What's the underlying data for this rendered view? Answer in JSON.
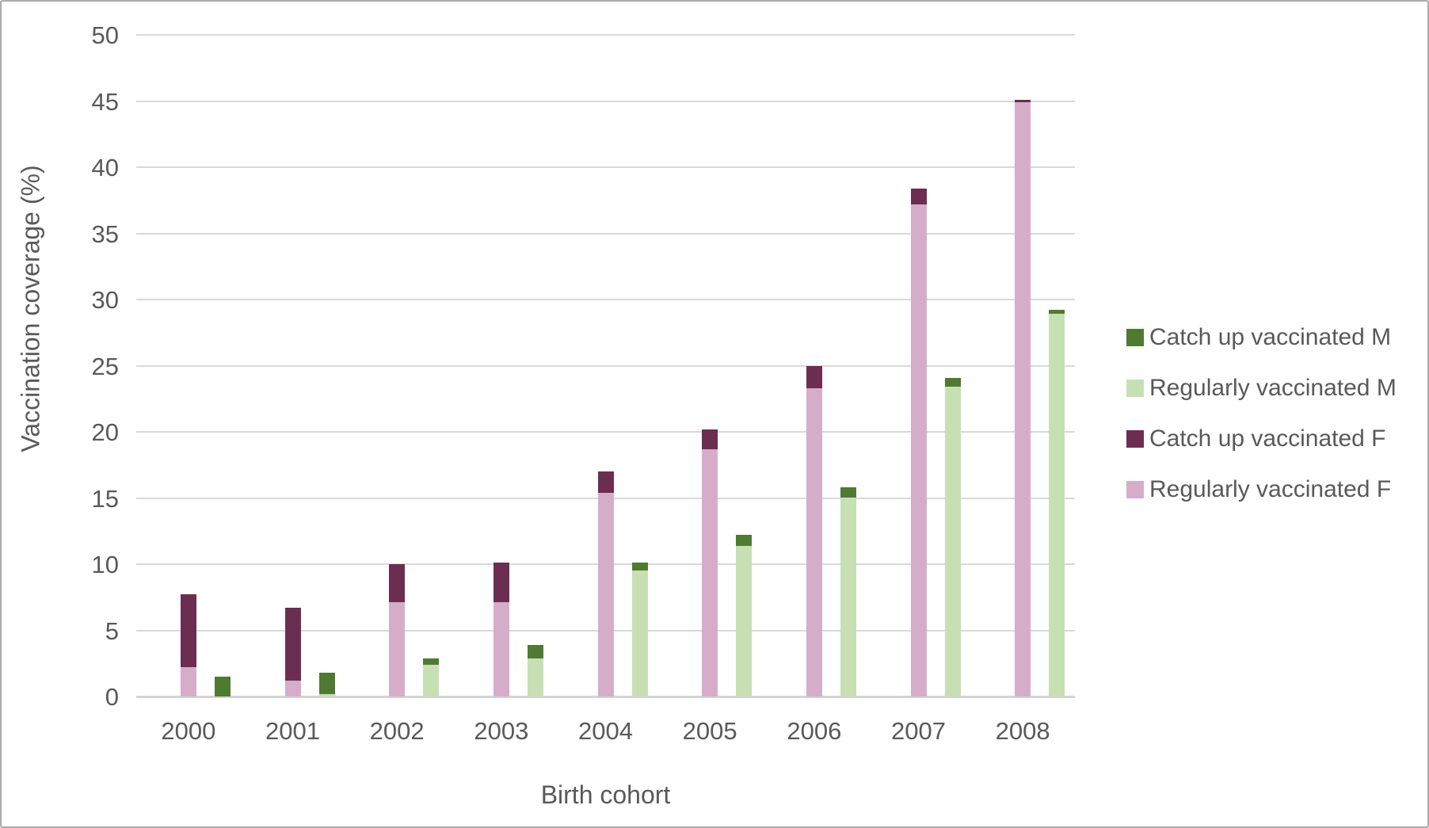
{
  "chart_data": {
    "type": "bar",
    "stacked": true,
    "title": "",
    "xlabel": "Birth cohort",
    "ylabel": "Vaccination coverage (%)",
    "ylim": [
      0,
      50
    ],
    "ytick_step": 5,
    "grid": true,
    "legend_position": "right",
    "categories": [
      "2000",
      "2001",
      "2002",
      "2003",
      "2004",
      "2005",
      "2006",
      "2007",
      "2008"
    ],
    "series": [
      {
        "name": "Catch up vaccinated M",
        "color": "#4e7b30",
        "stack": "M",
        "position": "top",
        "values": [
          1.5,
          1.6,
          0.5,
          1.0,
          0.6,
          0.8,
          0.8,
          0.7,
          0.3
        ]
      },
      {
        "name": "Regularly vaccinated M",
        "color": "#c6e0b4",
        "stack": "M",
        "position": "bottom",
        "values": [
          0.0,
          0.2,
          2.4,
          2.9,
          9.5,
          11.4,
          15.0,
          23.4,
          28.9
        ]
      },
      {
        "name": "Catch up vaccinated F",
        "color": "#6b2e51",
        "stack": "F",
        "position": "top",
        "values": [
          5.5,
          5.5,
          2.9,
          3.0,
          1.6,
          1.5,
          1.7,
          1.2,
          0.2
        ]
      },
      {
        "name": "Regularly vaccinated F",
        "color": "#d6adc9",
        "stack": "F",
        "position": "bottom",
        "values": [
          2.2,
          1.2,
          7.1,
          7.1,
          15.4,
          18.7,
          23.3,
          37.2,
          44.9
        ]
      }
    ]
  }
}
